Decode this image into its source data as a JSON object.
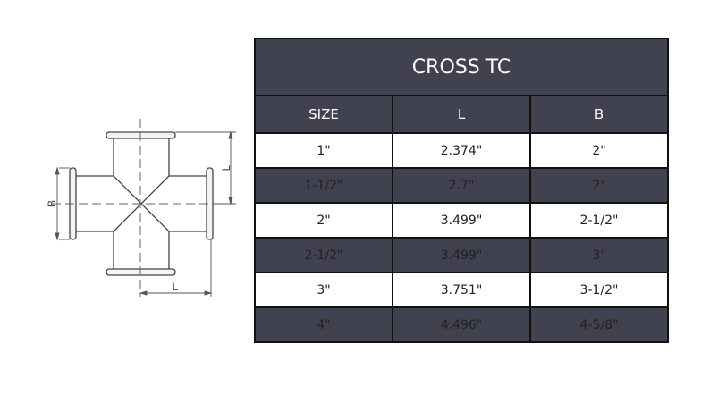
{
  "drawing": {
    "dimension_labels": {
      "b": "B",
      "l_vertical": "L",
      "l_horizontal": "L"
    }
  },
  "table": {
    "title": "CROSS TC",
    "headers": [
      "SIZE",
      "L",
      "B"
    ],
    "rows": [
      [
        "1\"",
        "2.374\"",
        "2\""
      ],
      [
        "1-1/2\"",
        "2.7\"",
        "2\""
      ],
      [
        "2\"",
        "3.499\"",
        "2-1/2\""
      ],
      [
        "2-1/2\"",
        "3.499\"",
        "3\""
      ],
      [
        "3\"",
        "3.751\"",
        "3-1/2\""
      ],
      [
        "4\"",
        "4.496\"",
        "4-5/8\""
      ]
    ]
  },
  "colors": {
    "header_bg": "#41424f",
    "header_text": "#ffffff"
  }
}
